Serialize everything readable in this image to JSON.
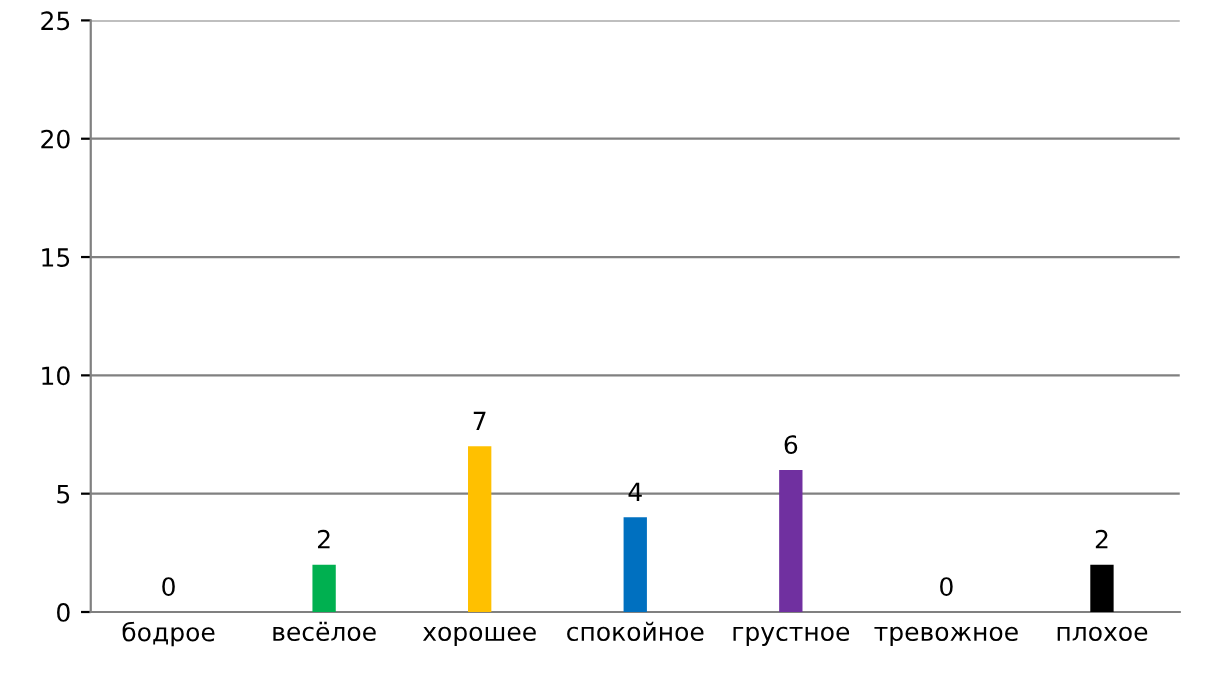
{
  "chart_data": {
    "type": "bar",
    "categories": [
      "бодрое",
      "весёлое",
      "хорошее",
      "спокойное",
      "грустное",
      "тревожное",
      "плохое"
    ],
    "values": [
      0,
      2,
      7,
      4,
      6,
      0,
      2
    ],
    "colors": [
      "#ff0000",
      "#00b050",
      "#ffc000",
      "#0070c0",
      "#7030a0",
      "#c00000",
      "#000000"
    ],
    "ylim": [
      0,
      25
    ],
    "yticks": [
      0,
      5,
      10,
      15,
      20,
      25
    ],
    "grid": "y",
    "data_labels": true
  }
}
